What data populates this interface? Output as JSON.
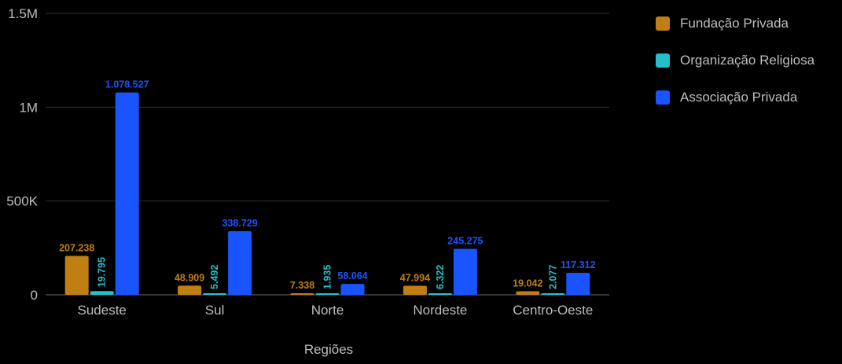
{
  "chart_data": {
    "type": "bar",
    "title": "",
    "xlabel": "Regiões",
    "ylabel": "",
    "ylim": [
      0,
      1500000
    ],
    "yticks": [
      {
        "value": 0,
        "label": "0"
      },
      {
        "value": 500000,
        "label": "500K"
      },
      {
        "value": 1000000,
        "label": "1M"
      },
      {
        "value": 1500000,
        "label": "1.5M"
      }
    ],
    "categories": [
      "Sudeste",
      "Sul",
      "Norte",
      "Nordeste",
      "Centro-Oeste"
    ],
    "series": [
      {
        "name": "Fundação Privada",
        "color": "#c07f12",
        "values": [
          207238,
          48909,
          7338,
          47994,
          19042
        ],
        "labels": [
          "207.238",
          "48.909",
          "7.338",
          "47.994",
          "19.042"
        ]
      },
      {
        "name": "Organização Religiosa",
        "color": "#25bfcb",
        "values": [
          19795,
          5492,
          1935,
          6322,
          2077
        ],
        "labels": [
          "19.795",
          "5.492",
          "1.935",
          "6.322",
          "2.077"
        ]
      },
      {
        "name": "Associação Privada",
        "color": "#1a54ff",
        "values": [
          1078527,
          338729,
          58064,
          245275,
          117312
        ],
        "labels": [
          "1.078.527",
          "338.729",
          "58.064",
          "245.275",
          "117.312"
        ]
      }
    ],
    "grid": true,
    "legend_position": "top-right"
  }
}
